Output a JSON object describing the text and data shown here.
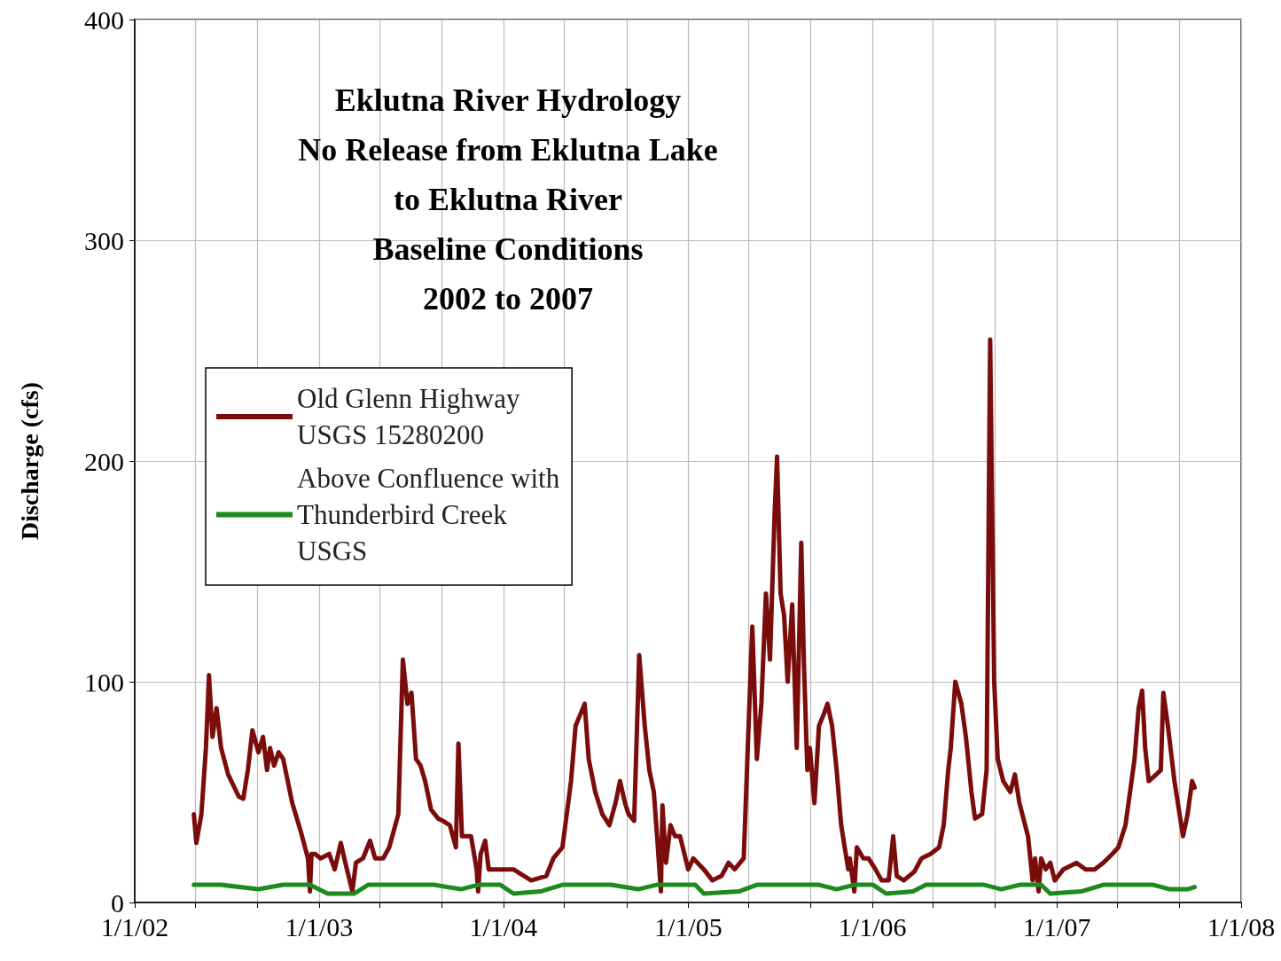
{
  "chart_data": {
    "type": "line",
    "title": "Eklutna River Hydrology\nNo Release from Eklutna Lake\nto Eklutna River\nBaseline Conditions\n2002 to 2007",
    "ylabel": "Discharge (cfs)",
    "legend": "left",
    "grid": true,
    "marker": "none",
    "line_style": "solid",
    "xlim": [
      "2002-01-01",
      "2008-01-01"
    ],
    "xticks": [
      {
        "value": "2002-01-01",
        "label": "1/1/02"
      },
      {
        "value": "2002-05-01",
        "label": null
      },
      {
        "value": "2002-09-01",
        "label": null
      },
      {
        "value": "2003-01-01",
        "label": "1/1/03"
      },
      {
        "value": "2003-05-01",
        "label": null
      },
      {
        "value": "2003-09-01",
        "label": null
      },
      {
        "value": "2004-01-01",
        "label": "1/1/04"
      },
      {
        "value": "2004-05-01",
        "label": null
      },
      {
        "value": "2004-09-01",
        "label": null
      },
      {
        "value": "2005-01-01",
        "label": "1/1/05"
      },
      {
        "value": "2005-05-01",
        "label": null
      },
      {
        "value": "2005-09-01",
        "label": null
      },
      {
        "value": "2006-01-01",
        "label": "1/1/06"
      },
      {
        "value": "2006-05-01",
        "label": null
      },
      {
        "value": "2006-09-01",
        "label": null
      },
      {
        "value": "2007-01-01",
        "label": "1/1/07"
      },
      {
        "value": "2007-05-01",
        "label": null
      },
      {
        "value": "2007-09-01",
        "label": null
      },
      {
        "value": "2008-01-01",
        "label": "1/1/08"
      }
    ],
    "ylim": [
      0,
      400
    ],
    "yticks": [
      0,
      100,
      200,
      300,
      400
    ],
    "series": [
      {
        "name": "Old Glenn Highway\nUSGS 15280200",
        "color": "#7b0c0c",
        "x": [
          "2002-04-28",
          "2002-05-03",
          "2002-05-13",
          "2002-05-22",
          "2002-05-28",
          "2002-06-04",
          "2002-06-12",
          "2002-06-21",
          "2002-07-05",
          "2002-07-26",
          "2002-08-04",
          "2002-08-13",
          "2002-08-22",
          "2002-09-03",
          "2002-09-12",
          "2002-09-20",
          "2002-09-26",
          "2002-10-04",
          "2002-10-13",
          "2002-10-22",
          "2002-11-09",
          "2002-11-26",
          "2002-12-10",
          "2002-12-14",
          "2002-12-17",
          "2002-12-24",
          "2003-01-04",
          "2003-01-21",
          "2003-02-01",
          "2003-02-13",
          "2003-02-22",
          "2003-03-08",
          "2003-03-15",
          "2003-03-29",
          "2003-04-12",
          "2003-04-22",
          "2003-05-08",
          "2003-05-20",
          "2003-06-07",
          "2003-06-16",
          "2003-06-25",
          "2003-07-03",
          "2003-07-12",
          "2003-07-21",
          "2003-07-30",
          "2003-08-11",
          "2003-08-25",
          "2003-09-03",
          "2003-09-17",
          "2003-09-29",
          "2003-10-04",
          "2003-10-11",
          "2003-10-29",
          "2003-11-09",
          "2003-11-12",
          "2003-11-17",
          "2003-11-26",
          "2003-12-03",
          "2003-12-17",
          "2004-01-21",
          "2004-02-25",
          "2004-03-26",
          "2004-04-09",
          "2004-04-27",
          "2004-05-14",
          "2004-05-23",
          "2004-06-01",
          "2004-06-10",
          "2004-06-18",
          "2004-07-01",
          "2004-07-15",
          "2004-07-29",
          "2004-08-10",
          "2004-08-19",
          "2004-08-29",
          "2004-09-05",
          "2004-09-16",
          "2004-09-26",
          "2004-10-07",
          "2004-10-16",
          "2004-10-25",
          "2004-11-02",
          "2004-11-08",
          "2004-11-11",
          "2004-11-18",
          "2004-11-27",
          "2004-12-06",
          "2004-12-16",
          "2005-01-01",
          "2005-01-11",
          "2005-02-01",
          "2005-02-18",
          "2005-03-08",
          "2005-03-22",
          "2005-04-03",
          "2005-04-21",
          "2005-04-29",
          "2005-05-08",
          "2005-05-17",
          "2005-05-26",
          "2005-06-04",
          "2005-06-12",
          "2005-06-21",
          "2005-06-26",
          "2005-07-03",
          "2005-07-10",
          "2005-07-17",
          "2005-07-26",
          "2005-08-04",
          "2005-08-13",
          "2005-08-18",
          "2005-08-25",
          "2005-08-30",
          "2005-09-08",
          "2005-09-17",
          "2005-09-26",
          "2005-10-04",
          "2005-10-13",
          "2005-10-22",
          "2005-10-31",
          "2005-11-14",
          "2005-11-17",
          "2005-11-26",
          "2005-12-01",
          "2005-12-14",
          "2005-12-24",
          "2006-01-07",
          "2006-01-19",
          "2006-02-02",
          "2006-02-11",
          "2006-02-18",
          "2006-03-04",
          "2006-03-25",
          "2006-04-08",
          "2006-04-26",
          "2006-05-13",
          "2006-05-22",
          "2006-05-31",
          "2006-06-05",
          "2006-06-14",
          "2006-06-26",
          "2006-07-05",
          "2006-07-16",
          "2006-07-23",
          "2006-08-06",
          "2006-08-15",
          "2006-08-22",
          "2006-08-30",
          "2006-09-06",
          "2006-09-17",
          "2006-10-01",
          "2006-10-10",
          "2006-10-19",
          "2006-11-05",
          "2006-11-14",
          "2006-11-19",
          "2006-11-26",
          "2006-12-01",
          "2006-12-10",
          "2006-12-19",
          "2006-12-28",
          "2007-01-14",
          "2007-02-09",
          "2007-02-27",
          "2007-03-17",
          "2007-04-03",
          "2007-04-21",
          "2007-05-03",
          "2007-05-17",
          "2007-06-04",
          "2007-06-12",
          "2007-06-19",
          "2007-06-25",
          "2007-07-02",
          "2007-07-17",
          "2007-07-26",
          "2007-07-31",
          "2007-08-09",
          "2007-08-22",
          "2007-09-08",
          "2007-09-17",
          "2007-09-26",
          "2007-10-01"
        ],
        "values": [
          40,
          27,
          40,
          70,
          103,
          75,
          88,
          70,
          58,
          48,
          47,
          60,
          78,
          68,
          75,
          60,
          70,
          62,
          68,
          65,
          45,
          32,
          20,
          5,
          22,
          22,
          20,
          22,
          15,
          27,
          18,
          5,
          18,
          20,
          28,
          20,
          20,
          25,
          40,
          110,
          90,
          95,
          65,
          62,
          55,
          42,
          38,
          37,
          35,
          25,
          72,
          30,
          30,
          15,
          5,
          22,
          28,
          15,
          15,
          15,
          10,
          12,
          20,
          25,
          55,
          80,
          85,
          90,
          65,
          50,
          40,
          35,
          45,
          55,
          45,
          40,
          37,
          112,
          80,
          60,
          50,
          25,
          5,
          44,
          18,
          35,
          30,
          30,
          15,
          20,
          15,
          10,
          12,
          18,
          15,
          20,
          70,
          125,
          65,
          90,
          140,
          110,
          175,
          202,
          140,
          130,
          100,
          135,
          70,
          163,
          110,
          60,
          70,
          45,
          80,
          85,
          90,
          80,
          60,
          35,
          15,
          20,
          5,
          25,
          20,
          20,
          15,
          10,
          10,
          30,
          12,
          10,
          14,
          20,
          22,
          25,
          35,
          60,
          70,
          100,
          90,
          75,
          50,
          38,
          40,
          60,
          255,
          100,
          65,
          55,
          50,
          58,
          45,
          30,
          10,
          20,
          5,
          20,
          15,
          18,
          10,
          15,
          18,
          15,
          15,
          18,
          22,
          25,
          35,
          65,
          88,
          96,
          70,
          55,
          58,
          60,
          95,
          80,
          55,
          30,
          40,
          55,
          52
        ]
      },
      {
        "name": "Above Confluence with\nThunderbird Creek\nUSGS",
        "color": "#1e8a1e",
        "x": [
          "2002-04-28",
          "2002-06-21",
          "2002-09-03",
          "2002-10-22",
          "2002-12-14",
          "2003-01-18",
          "2003-03-11",
          "2003-04-08",
          "2003-08-17",
          "2003-10-09",
          "2003-11-12",
          "2003-12-26",
          "2004-01-21",
          "2004-03-14",
          "2004-04-27",
          "2004-08-01",
          "2004-09-24",
          "2004-10-30",
          "2005-01-15",
          "2005-02-01",
          "2005-04-11",
          "2005-05-17",
          "2005-09-17",
          "2005-10-22",
          "2005-11-26",
          "2006-01-02",
          "2006-01-28",
          "2006-03-22",
          "2006-04-17",
          "2006-08-10",
          "2006-09-13",
          "2006-10-19",
          "2006-12-01",
          "2006-12-19",
          "2007-02-18",
          "2007-04-03",
          "2007-07-11",
          "2007-08-13",
          "2007-09-17",
          "2007-10-01"
        ],
        "values": [
          8,
          8,
          6,
          8,
          8,
          4,
          4,
          8,
          8,
          6,
          8,
          8,
          4,
          5,
          8,
          8,
          6,
          8,
          8,
          4,
          5,
          8,
          8,
          6,
          8,
          8,
          4,
          5,
          8,
          8,
          6,
          8,
          8,
          4,
          5,
          8,
          8,
          6,
          6,
          7
        ]
      }
    ]
  }
}
